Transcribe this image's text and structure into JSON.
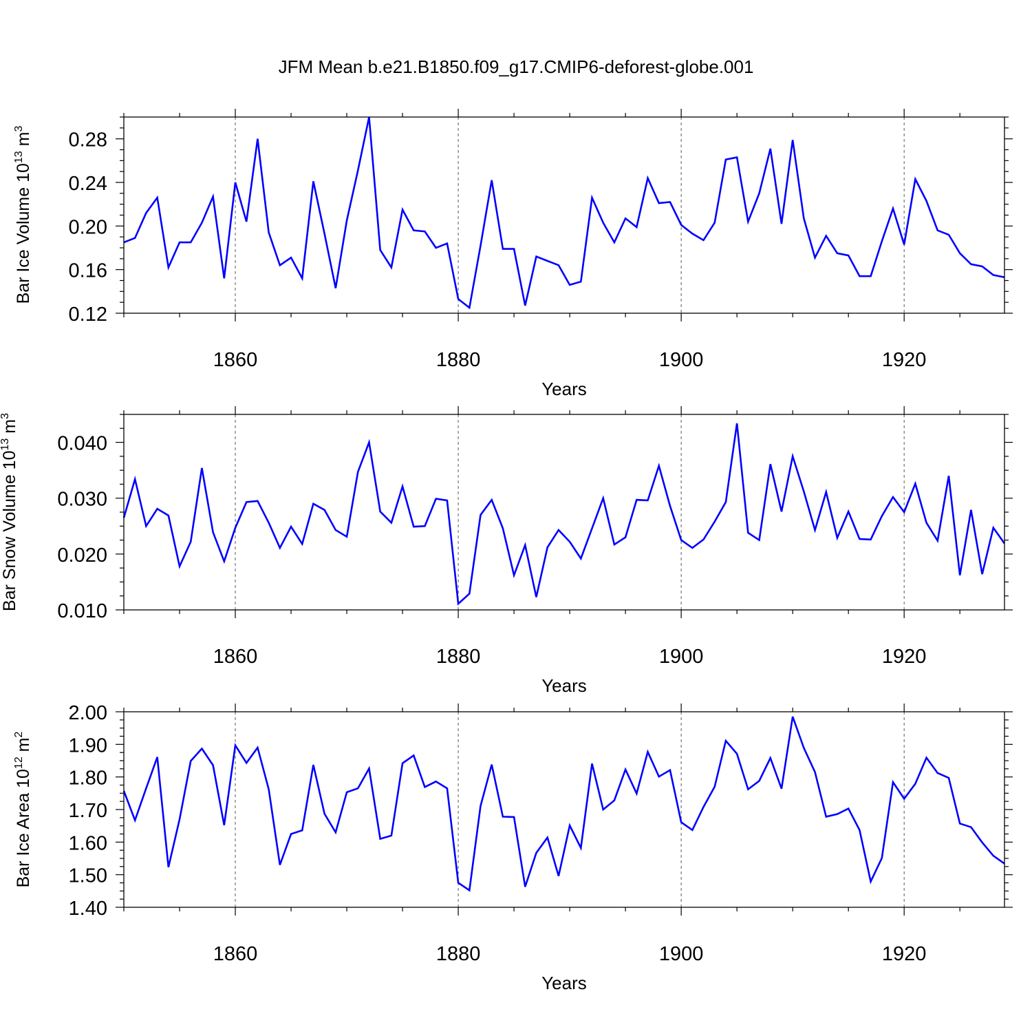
{
  "figure_title": "JFM Mean b.e21.B1850.f09_g17.CMIP6-deforest-globe.001",
  "chart_data": [
    {
      "type": "line",
      "title": "",
      "xlabel": "Years",
      "ylabel": "Bar Ice Volume 10",
      "ylabel_exp": "13",
      "ylabel_unit": " m",
      "ylabel_unit_exp": "3",
      "xlim": [
        1850,
        1929
      ],
      "ylim": [
        0.12,
        0.3
      ],
      "xticks": [
        1860,
        1880,
        1900,
        1920
      ],
      "xtick_labels": [
        "1860",
        "1880",
        "1900",
        "1920"
      ],
      "yticks": [
        0.12,
        0.16,
        0.2,
        0.24,
        0.28
      ],
      "ytick_labels": [
        "0.12",
        "0.16",
        "0.20",
        "0.24",
        "0.28"
      ],
      "grid": "vertical dashed at major x ticks",
      "line_color": "#0000ff",
      "series": [
        {
          "name": "Bar Ice Volume",
          "x_start": 1850,
          "values": [
            0.185,
            0.189,
            0.212,
            0.226,
            0.162,
            0.185,
            0.185,
            0.203,
            0.227,
            0.152,
            0.24,
            0.204,
            0.28,
            0.194,
            0.164,
            0.171,
            0.152,
            0.241,
            0.193,
            0.143,
            0.205,
            0.251,
            0.3,
            0.178,
            0.162,
            0.215,
            0.196,
            0.195,
            0.18,
            0.184,
            0.133,
            0.125,
            0.182,
            0.242,
            0.179,
            0.179,
            0.127,
            0.172,
            0.168,
            0.164,
            0.146,
            0.149,
            0.226,
            0.203,
            0.185,
            0.207,
            0.199,
            0.244,
            0.221,
            0.222,
            0.201,
            0.193,
            0.187,
            0.203,
            0.261,
            0.263,
            0.204,
            0.23,
            0.271,
            0.202,
            0.279,
            0.207,
            0.171,
            0.191,
            0.175,
            0.173,
            0.154,
            0.154,
            0.186,
            0.216,
            0.183,
            0.243,
            0.223,
            0.196,
            0.192,
            0.175,
            0.165,
            0.163,
            0.155,
            0.153
          ]
        }
      ]
    },
    {
      "type": "line",
      "title": "",
      "xlabel": "Years",
      "ylabel": "Bar Snow Volume 10",
      "ylabel_exp": "13",
      "ylabel_unit": " m",
      "ylabel_unit_exp": "3",
      "xlim": [
        1850,
        1929
      ],
      "ylim": [
        0.01,
        0.045
      ],
      "xticks": [
        1860,
        1880,
        1900,
        1920
      ],
      "xtick_labels": [
        "1860",
        "1880",
        "1900",
        "1920"
      ],
      "yticks": [
        0.01,
        0.02,
        0.03,
        0.04
      ],
      "ytick_labels": [
        "0.010",
        "0.020",
        "0.030",
        "0.040"
      ],
      "grid": "vertical dashed at major x ticks",
      "line_color": "#0000ff",
      "series": [
        {
          "name": "Bar Snow Volume",
          "x_start": 1850,
          "values": [
            0.0265,
            0.0334,
            0.025,
            0.0281,
            0.0269,
            0.0178,
            0.0222,
            0.0354,
            0.0239,
            0.0187,
            0.0247,
            0.0293,
            0.0295,
            0.0256,
            0.0211,
            0.0249,
            0.0218,
            0.029,
            0.0279,
            0.0243,
            0.0231,
            0.0347,
            0.04,
            0.0276,
            0.0256,
            0.0321,
            0.0249,
            0.025,
            0.0299,
            0.0296,
            0.0111,
            0.0129,
            0.027,
            0.0297,
            0.0246,
            0.0162,
            0.0216,
            0.0123,
            0.0212,
            0.0243,
            0.0222,
            0.0192,
            0.0246,
            0.03,
            0.0217,
            0.023,
            0.0297,
            0.0296,
            0.0358,
            0.0286,
            0.0225,
            0.0211,
            0.0226,
            0.0258,
            0.0293,
            0.0434,
            0.0238,
            0.0225,
            0.0361,
            0.0276,
            0.0375,
            0.0312,
            0.0243,
            0.0311,
            0.0229,
            0.0276,
            0.0227,
            0.0226,
            0.0268,
            0.0302,
            0.0275,
            0.0326,
            0.0256,
            0.0224,
            0.034,
            0.0162,
            0.0279,
            0.0164,
            0.0247,
            0.0219
          ]
        }
      ]
    },
    {
      "type": "line",
      "title": "",
      "xlabel": "Years",
      "ylabel": "Bar Ice Area 10",
      "ylabel_exp": "12",
      "ylabel_unit": " m",
      "ylabel_unit_exp": "2",
      "xlim": [
        1850,
        1929
      ],
      "ylim": [
        1.4,
        2.0
      ],
      "xticks": [
        1860,
        1880,
        1900,
        1920
      ],
      "xtick_labels": [
        "1860",
        "1880",
        "1900",
        "1920"
      ],
      "yticks": [
        1.4,
        1.5,
        1.6,
        1.7,
        1.8,
        1.9,
        2.0
      ],
      "ytick_labels": [
        "1.40",
        "1.50",
        "1.60",
        "1.70",
        "1.80",
        "1.90",
        "2.00"
      ],
      "grid": "vertical dashed at major x ticks",
      "line_color": "#0000ff",
      "series": [
        {
          "name": "Bar Ice Area",
          "x_start": 1850,
          "values": [
            1.757,
            1.667,
            1.765,
            1.861,
            1.523,
            1.67,
            1.849,
            1.887,
            1.836,
            1.652,
            1.897,
            1.843,
            1.89,
            1.762,
            1.53,
            1.625,
            1.636,
            1.837,
            1.687,
            1.63,
            1.753,
            1.765,
            1.826,
            1.61,
            1.62,
            1.842,
            1.866,
            1.769,
            1.786,
            1.765,
            1.475,
            1.452,
            1.711,
            1.838,
            1.678,
            1.677,
            1.463,
            1.567,
            1.614,
            1.496,
            1.651,
            1.582,
            1.841,
            1.7,
            1.728,
            1.823,
            1.749,
            1.877,
            1.801,
            1.821,
            1.661,
            1.637,
            1.708,
            1.77,
            1.911,
            1.871,
            1.762,
            1.788,
            1.858,
            1.764,
            1.985,
            1.889,
            1.815,
            1.678,
            1.686,
            1.703,
            1.637,
            1.479,
            1.551,
            1.784,
            1.733,
            1.779,
            1.859,
            1.812,
            1.797,
            1.657,
            1.646,
            1.599,
            1.558,
            1.534
          ]
        }
      ]
    }
  ]
}
